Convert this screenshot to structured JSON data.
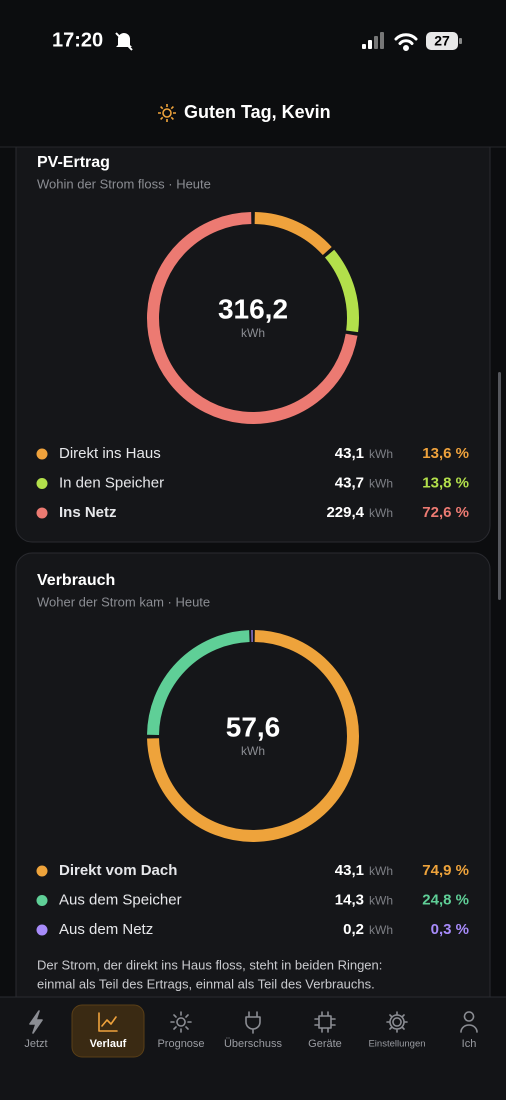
{
  "status": {
    "time": "17:20",
    "battery": "27"
  },
  "header": {
    "title": "Guten Tag, Kevin"
  },
  "cards": [
    {
      "title": "PV-Ertrag",
      "subtitle": "Wohin der Strom floss · Heute",
      "total": "316,2",
      "unit": "kWh",
      "items": [
        {
          "label": "Direkt ins Haus",
          "value": "43,1",
          "percent": {
            "value": 13.6,
            "label": "13,6 %"
          },
          "color": "#efa23c"
        },
        {
          "label": "In den Speicher",
          "value": "43,7",
          "percent": {
            "value": 13.8,
            "label": "13,8 %"
          },
          "color": "#b3e04b"
        },
        {
          "label": "Ins Netz",
          "value": "229,4",
          "percent": {
            "value": 72.6,
            "label": "72,6 %"
          },
          "color": "#ec7a72",
          "bold": true
        }
      ]
    },
    {
      "title": "Verbrauch",
      "subtitle": "Woher der Strom kam · Heute",
      "total": "57,6",
      "unit": "kWh",
      "items": [
        {
          "label": "Direkt vom Dach",
          "value": "43,1",
          "percent": {
            "value": 74.9,
            "label": "74,9 %"
          },
          "color": "#eea33b",
          "bold": true
        },
        {
          "label": "Aus dem Speicher",
          "value": "14,3",
          "percent": {
            "value": 24.8,
            "label": "24,8 %"
          },
          "color": "#5fcf97"
        },
        {
          "label": "Aus dem Netz",
          "value": "0,2",
          "percent": {
            "value": 0.3,
            "label": "0,3 %"
          },
          "color": "#a78bfa"
        }
      ],
      "note": [
        "Der Strom, der direkt ins Haus floss, steht in beiden Ringen:",
        "einmal als Teil des Ertrags, einmal als Teil des Verbrauchs."
      ]
    }
  ],
  "nav": {
    "items": [
      "Jetzt",
      "Verlauf",
      "Prognose",
      "Überschuss",
      "Geräte",
      "Einstellungen",
      "Ich"
    ],
    "active": 1
  }
}
